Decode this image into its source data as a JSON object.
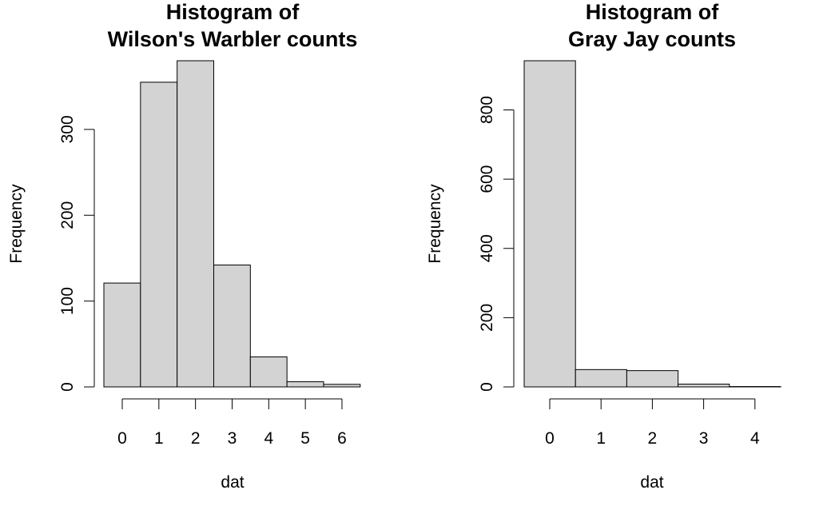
{
  "chart_data": [
    {
      "type": "bar",
      "title_line1": "Histogram of",
      "title_line2": "Wilson's Warbler counts",
      "xlabel": "dat",
      "ylabel": "Frequency",
      "categories": [
        "0",
        "1",
        "2",
        "3",
        "4",
        "5",
        "6"
      ],
      "values": [
        121,
        355,
        380,
        142,
        35,
        6,
        3
      ],
      "ylim": [
        0,
        380
      ],
      "yticks": [
        0,
        100,
        200,
        300
      ],
      "grid": false
    },
    {
      "type": "bar",
      "title_line1": "Histogram of",
      "title_line2": "Gray Jay counts",
      "xlabel": "dat",
      "ylabel": "Frequency",
      "categories": [
        "0",
        "1",
        "2",
        "3",
        "4"
      ],
      "values": [
        942,
        50,
        47,
        8,
        1
      ],
      "ylim": [
        0,
        942
      ],
      "yticks": [
        0,
        200,
        400,
        600,
        800
      ],
      "grid": false
    }
  ]
}
